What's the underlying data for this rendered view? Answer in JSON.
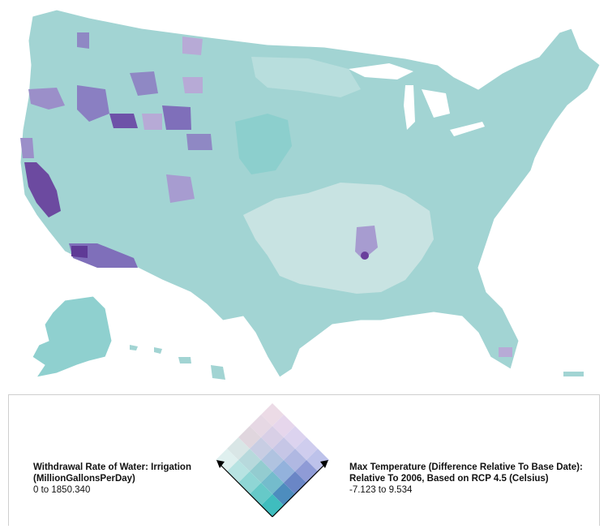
{
  "map": {
    "region": "contiguous United States, Alaska, Hawaii",
    "colors": {
      "base_teal": "#9ed3d2",
      "light_teal": "#b3dcdb",
      "pale_center": "#c8e3e3",
      "teal_strong": "#80cccb",
      "purple_mid": "#8f88c4",
      "purple_light": "#b7aad6",
      "purple_dark": "#6a3f9c",
      "border": "#ffffff"
    }
  },
  "legend": {
    "left": {
      "title_line1": "Withdrawal Rate of Water: Irrigation",
      "title_line2": "(MillionGallonsPerDay)",
      "range": "0 to 1850.340"
    },
    "right": {
      "title_line1": "Max Temperature (Difference Relative To Base Date):",
      "title_line2": "Relative To 2006, Based on RCP 4.5 (Celsius)",
      "range": "-7.123 to 9.534"
    },
    "grid_colors": [
      [
        "#ecdbe6",
        "#e6d6ec",
        "#dcd3ef",
        "#cfcdee",
        "#bdc2ea"
      ],
      [
        "#e6d8e4",
        "#d8cfe6",
        "#c6c6e6",
        "#b0b8e2",
        "#8f9bd6"
      ],
      [
        "#e0d6de",
        "#c8cde3",
        "#b0c3e0",
        "#93b2dc",
        "#6a86c6"
      ],
      [
        "#d9e6e6",
        "#b7d9dc",
        "#93ccd0",
        "#74bccc",
        "#4d8dbe"
      ],
      [
        "#dff0ef",
        "#b7e3e2",
        "#8fd6d5",
        "#66c9c8",
        "#3fbdbe"
      ]
    ]
  }
}
